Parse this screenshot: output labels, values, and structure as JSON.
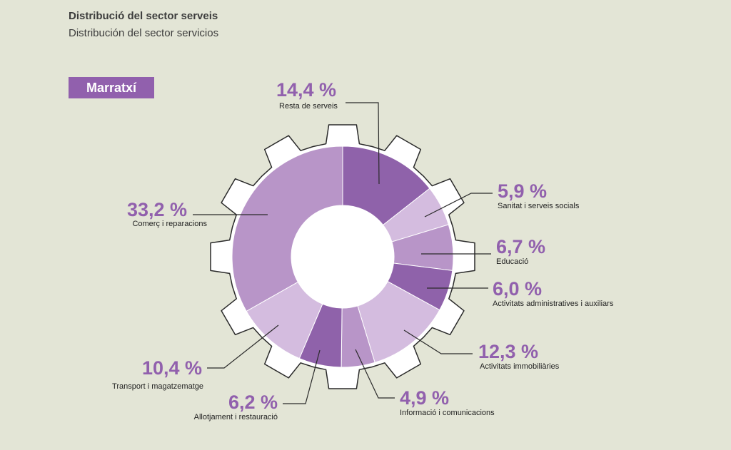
{
  "header": {
    "title_ca": "Distribució del sector serveis",
    "title_es": "Distribución del sector servicios"
  },
  "badge": {
    "label": "Marratxí"
  },
  "colors": {
    "background": "#e3e5d6",
    "accent": "#9160ad",
    "dark": "#8f62aa",
    "mid": "#b895c8",
    "light": "#d4bcdf"
  },
  "chart_data": {
    "type": "pie",
    "style": "donut inside gear outline",
    "slices": [
      {
        "label": "Resta de serveis",
        "value": 14.4,
        "value_text": "14,4 %",
        "shade": "dark"
      },
      {
        "label": "Sanitat i serveis socials",
        "value": 5.9,
        "value_text": "5,9 %",
        "shade": "light"
      },
      {
        "label": "Educació",
        "value": 6.7,
        "value_text": "6,7 %",
        "shade": "mid"
      },
      {
        "label": "Activitats administratives i auxiliars",
        "value": 6.0,
        "value_text": "6,0 %",
        "shade": "dark"
      },
      {
        "label": "Activitats immobiliàries",
        "value": 12.3,
        "value_text": "12,3 %",
        "shade": "light"
      },
      {
        "label": "Informació i comunicacions",
        "value": 4.9,
        "value_text": "4,9 %",
        "shade": "mid"
      },
      {
        "label": "Allotjament i restauració",
        "value": 6.2,
        "value_text": "6,2 %",
        "shade": "dark"
      },
      {
        "label": "Transport i magatzematge",
        "value": 10.4,
        "value_text": "10,4 %",
        "shade": "light"
      },
      {
        "label": "Comerç i reparacions",
        "value": 33.2,
        "value_text": "33,2 %",
        "shade": "mid"
      }
    ]
  }
}
